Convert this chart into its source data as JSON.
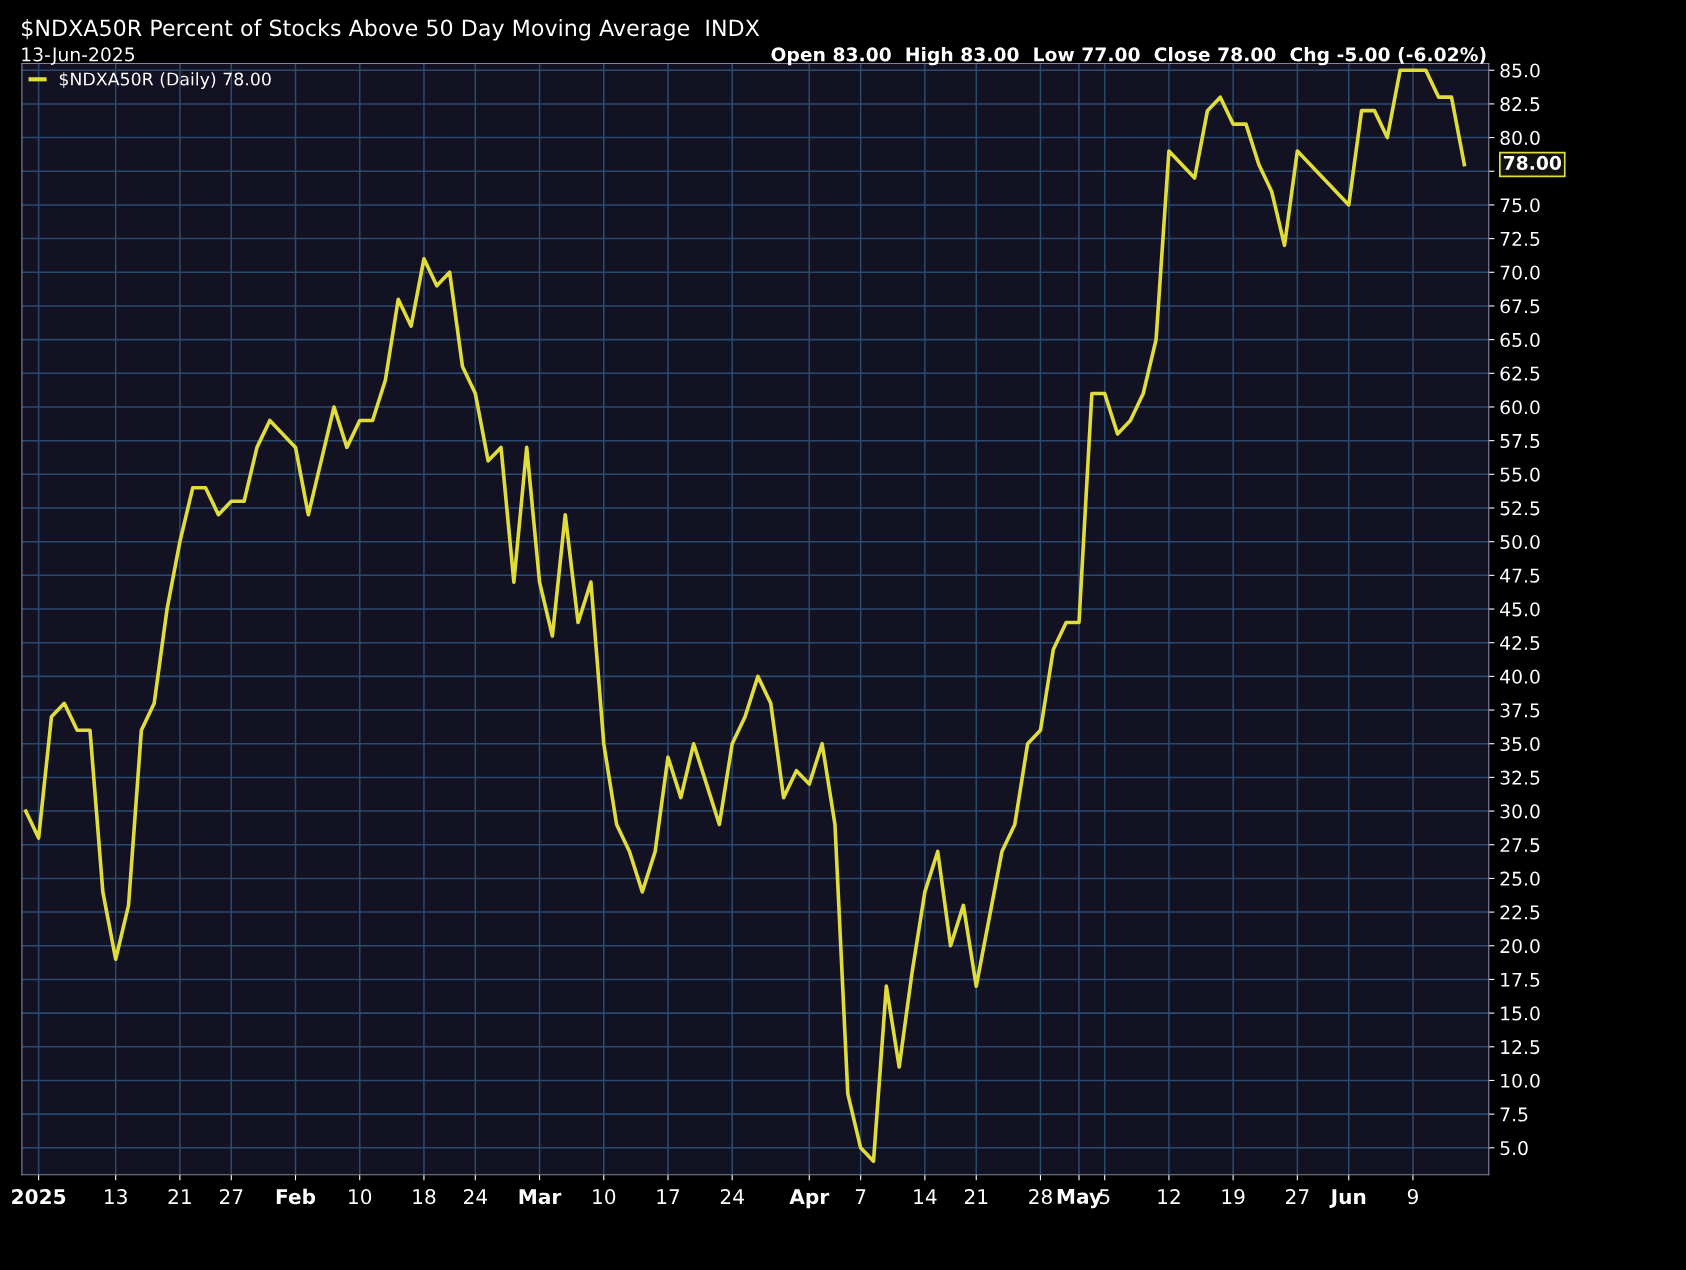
{
  "chart_data": {
    "type": "line",
    "title": "$NDXA50R Percent of Stocks Above 50 Day Moving Average  INDX",
    "subtitle": "13-Jun-2025",
    "annotations": [
      "Open 83.00  High 83.00  Low 77.00  Close 78.00  Chg -5.00 (-6.02%)",
      "78.00"
    ],
    "categories": [
      null,
      "2025",
      null,
      null,
      null,
      null,
      null,
      "13",
      null,
      null,
      null,
      null,
      "21",
      null,
      null,
      null,
      "27",
      null,
      null,
      null,
      null,
      "Feb",
      null,
      null,
      null,
      null,
      "10",
      null,
      null,
      null,
      null,
      "18",
      null,
      null,
      null,
      "24",
      null,
      null,
      null,
      null,
      "Mar",
      null,
      null,
      null,
      null,
      "10",
      null,
      null,
      null,
      null,
      "17",
      null,
      null,
      null,
      null,
      "24",
      null,
      null,
      null,
      null,
      null,
      "Apr",
      null,
      null,
      null,
      "7",
      null,
      null,
      null,
      null,
      "14",
      null,
      null,
      null,
      "21",
      null,
      null,
      null,
      null,
      "28",
      null,
      null,
      "May",
      null,
      "5",
      null,
      null,
      null,
      null,
      "12",
      null,
      null,
      null,
      null,
      "19",
      null,
      null,
      null,
      null,
      "27",
      null,
      null,
      null,
      "Jun",
      null,
      null,
      null,
      null,
      "9",
      null,
      null,
      null,
      null
    ],
    "series": [
      {
        "name": "$NDXA50R (Daily) 78.00",
        "color": "#e0dc3a",
        "values": [
          30,
          28,
          37,
          38,
          36,
          36,
          24,
          19,
          23,
          36,
          38,
          45,
          50,
          54,
          54,
          52,
          53,
          53,
          57,
          59,
          58,
          57,
          52,
          56,
          60,
          57,
          59,
          59,
          62,
          68,
          66,
          71,
          69,
          70,
          63,
          61,
          56,
          57,
          47,
          57,
          47,
          43,
          52,
          44,
          47,
          35,
          29,
          27,
          24,
          27,
          34,
          31,
          35,
          32,
          29,
          35,
          37,
          40,
          38,
          31,
          33,
          32,
          35,
          29,
          9,
          5,
          4,
          17,
          11,
          18,
          24,
          27,
          20,
          23,
          17,
          22,
          27,
          29,
          35,
          36,
          42,
          44,
          44,
          61,
          61,
          58,
          59,
          61,
          65,
          79,
          78,
          77,
          82,
          83,
          81,
          81,
          78,
          76,
          72,
          79,
          78,
          77,
          76,
          75,
          82,
          82,
          80,
          85,
          85,
          85,
          83,
          83,
          78
        ]
      }
    ],
    "ylim": [
      3,
      85.5
    ],
    "yticks": [
      {
        "value": 5,
        "label": "5.0"
      },
      {
        "value": 7.5,
        "label": "7.5"
      },
      {
        "value": 10,
        "label": "10.0"
      },
      {
        "value": 12.5,
        "label": "12.5"
      },
      {
        "value": 15,
        "label": "15.0"
      },
      {
        "value": 17.5,
        "label": "17.5"
      },
      {
        "value": 20,
        "label": "20.0"
      },
      {
        "value": 22.5,
        "label": "22.5"
      },
      {
        "value": 25,
        "label": "25.0"
      },
      {
        "value": 27.5,
        "label": "27.5"
      },
      {
        "value": 30,
        "label": "30.0"
      },
      {
        "value": 32.5,
        "label": "32.5"
      },
      {
        "value": 35,
        "label": "35.0"
      },
      {
        "value": 37.5,
        "label": "37.5"
      },
      {
        "value": 40,
        "label": "40.0"
      },
      {
        "value": 42.5,
        "label": "42.5"
      },
      {
        "value": 45,
        "label": "45.0"
      },
      {
        "value": 47.5,
        "label": "47.5"
      },
      {
        "value": 50,
        "label": "50.0"
      },
      {
        "value": 52.5,
        "label": "52.5"
      },
      {
        "value": 55,
        "label": "55.0"
      },
      {
        "value": 57.5,
        "label": "57.5"
      },
      {
        "value": 60,
        "label": "60.0"
      },
      {
        "value": 62.5,
        "label": "62.5"
      },
      {
        "value": 65,
        "label": "65.0"
      },
      {
        "value": 67.5,
        "label": "67.5"
      },
      {
        "value": 70,
        "label": "70.0"
      },
      {
        "value": 72.5,
        "label": "72.5"
      },
      {
        "value": 75,
        "label": "75.0"
      },
      {
        "value": 77.5,
        "label": null
      },
      {
        "value": 80,
        "label": "80.0"
      },
      {
        "value": 82.5,
        "label": "82.5"
      },
      {
        "value": 85,
        "label": "85.0"
      }
    ],
    "grid": true,
    "legend": "top left",
    "marker": "none",
    "line_style": "solid"
  }
}
